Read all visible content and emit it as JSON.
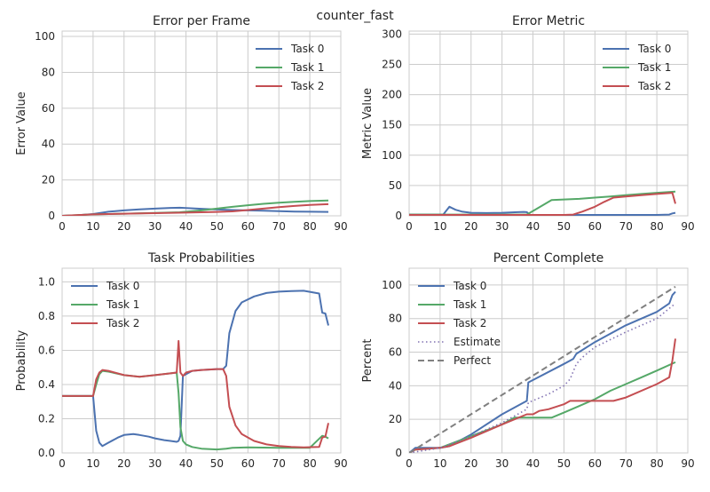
{
  "suptitle": "counter_fast",
  "colors": {
    "task0": "#4c72b0",
    "task1": "#55a868",
    "task2": "#c44e52",
    "estimate": "#8172b2",
    "perfect": "#808080"
  },
  "chart_data": [
    {
      "type": "line",
      "title": "Error per Frame",
      "xlabel": "",
      "ylabel": "Error Value",
      "xlim": [
        0,
        90
      ],
      "ylim": [
        0,
        103
      ],
      "xticks": [
        "0",
        "10",
        "20",
        "30",
        "40",
        "50",
        "60",
        "70",
        "80",
        "90"
      ],
      "yticks": [
        "0",
        "20",
        "40",
        "60",
        "80",
        "100"
      ],
      "legend": "top-right",
      "series": [
        {
          "name": "Task 0",
          "color": "#4c72b0",
          "style": "solid",
          "x": [
            0,
            5,
            10,
            15,
            20,
            25,
            30,
            35,
            38,
            40,
            45,
            50,
            55,
            60,
            65,
            70,
            75,
            80,
            86
          ],
          "y": [
            0,
            0.3,
            1,
            2.3,
            3,
            3.6,
            4,
            4.4,
            4.5,
            4.3,
            3.9,
            3.5,
            3.2,
            3,
            2.8,
            2.6,
            2.4,
            2.3,
            2.2
          ]
        },
        {
          "name": "Task 1",
          "color": "#55a868",
          "style": "solid",
          "x": [
            0,
            10,
            20,
            30,
            38,
            45,
            50,
            55,
            60,
            65,
            70,
            75,
            80,
            86
          ],
          "y": [
            0,
            0.8,
            1.2,
            1.6,
            2,
            3,
            4,
            5,
            5.9,
            6.7,
            7.3,
            7.8,
            8.2,
            8.5
          ]
        },
        {
          "name": "Task 2",
          "color": "#c44e52",
          "style": "solid",
          "x": [
            0,
            10,
            20,
            30,
            40,
            50,
            55,
            60,
            65,
            70,
            75,
            80,
            86
          ],
          "y": [
            0,
            0.8,
            1.2,
            1.5,
            1.8,
            2.2,
            2.5,
            3.2,
            4,
            4.8,
            5.5,
            6.1,
            6.5
          ]
        }
      ]
    },
    {
      "type": "line",
      "title": "Error Metric",
      "xlabel": "",
      "ylabel": "Metric Value",
      "xlim": [
        0,
        90
      ],
      "ylim": [
        0,
        305
      ],
      "xticks": [
        "0",
        "10",
        "20",
        "30",
        "40",
        "50",
        "60",
        "70",
        "80",
        "90"
      ],
      "yticks": [
        "0",
        "50",
        "100",
        "150",
        "200",
        "250",
        "300"
      ],
      "legend": "top-right",
      "series": [
        {
          "name": "Task 0",
          "color": "#4c72b0",
          "style": "solid",
          "x": [
            0,
            10,
            11,
            13,
            15,
            17,
            20,
            25,
            30,
            35,
            37,
            38,
            39,
            45,
            50,
            60,
            70,
            80,
            84,
            85,
            86
          ],
          "y": [
            2,
            2,
            2,
            15,
            10,
            7,
            5,
            4.5,
            5,
            6,
            6.5,
            6,
            1.5,
            1.5,
            1.5,
            1.5,
            1.5,
            1.5,
            2,
            4,
            5
          ]
        },
        {
          "name": "Task 1",
          "color": "#55a868",
          "style": "solid",
          "x": [
            0,
            10,
            20,
            30,
            38,
            42,
            46,
            50,
            55,
            60,
            65,
            70,
            75,
            80,
            86
          ],
          "y": [
            2,
            2,
            2,
            2,
            2,
            14,
            26,
            27,
            28,
            30,
            32,
            34,
            36,
            38,
            40
          ]
        },
        {
          "name": "Task 2",
          "color": "#c44e52",
          "style": "solid",
          "x": [
            0,
            10,
            20,
            30,
            40,
            50,
            53,
            56,
            60,
            63,
            66,
            70,
            75,
            80,
            85,
            86
          ],
          "y": [
            1.5,
            1.5,
            1.5,
            1.5,
            1.5,
            1.5,
            2,
            7,
            15,
            23,
            30,
            32,
            34,
            36,
            38,
            20
          ]
        }
      ]
    },
    {
      "type": "line",
      "title": "Task Probabilities",
      "xlabel": "",
      "ylabel": "Probability",
      "xlim": [
        0,
        90
      ],
      "ylim": [
        0,
        1.08
      ],
      "xticks": [
        "0",
        "10",
        "20",
        "30",
        "40",
        "50",
        "60",
        "70",
        "80",
        "90"
      ],
      "yticks": [
        "0.0",
        "0.2",
        "0.4",
        "0.6",
        "0.8",
        "1.0"
      ],
      "legend": "top-left",
      "series": [
        {
          "name": "Task 0",
          "color": "#4c72b0",
          "style": "solid",
          "x": [
            0,
            10,
            11,
            12,
            13,
            15,
            18,
            20,
            23,
            25,
            28,
            30,
            33,
            35,
            37,
            37.6,
            38.2,
            39,
            42,
            45,
            50,
            52,
            53,
            54,
            56,
            58,
            62,
            66,
            70,
            74,
            78,
            83,
            84,
            85,
            86
          ],
          "y": [
            0.333,
            0.333,
            0.13,
            0.06,
            0.04,
            0.06,
            0.09,
            0.105,
            0.11,
            0.105,
            0.095,
            0.085,
            0.075,
            0.07,
            0.065,
            0.07,
            0.1,
            0.45,
            0.48,
            0.485,
            0.49,
            0.49,
            0.51,
            0.7,
            0.83,
            0.88,
            0.915,
            0.935,
            0.943,
            0.946,
            0.948,
            0.932,
            0.82,
            0.815,
            0.745
          ]
        },
        {
          "name": "Task 1",
          "color": "#55a868",
          "style": "solid",
          "x": [
            0,
            10,
            11,
            12,
            13,
            15,
            20,
            25,
            30,
            35,
            37,
            37.6,
            38.2,
            39,
            40,
            42,
            45,
            50,
            53,
            55,
            60,
            70,
            80,
            84,
            85,
            86
          ],
          "y": [
            0.333,
            0.333,
            0.4,
            0.46,
            0.48,
            0.475,
            0.455,
            0.445,
            0.455,
            0.465,
            0.47,
            0.35,
            0.15,
            0.07,
            0.05,
            0.035,
            0.025,
            0.02,
            0.025,
            0.03,
            0.032,
            0.03,
            0.03,
            0.1,
            0.095,
            0.085
          ]
        },
        {
          "name": "Task 2",
          "color": "#c44e52",
          "style": "solid",
          "x": [
            0,
            10,
            11,
            12,
            13,
            15,
            20,
            25,
            30,
            35,
            37,
            37.6,
            38.2,
            39,
            40,
            42,
            45,
            50,
            52,
            53,
            54,
            56,
            58,
            62,
            66,
            70,
            74,
            78,
            83,
            84,
            85,
            86
          ],
          "y": [
            0.333,
            0.333,
            0.43,
            0.47,
            0.485,
            0.48,
            0.455,
            0.445,
            0.455,
            0.465,
            0.47,
            0.655,
            0.47,
            0.45,
            0.47,
            0.48,
            0.485,
            0.49,
            0.49,
            0.45,
            0.27,
            0.16,
            0.11,
            0.07,
            0.05,
            0.04,
            0.035,
            0.032,
            0.035,
            0.09,
            0.095,
            0.175
          ]
        }
      ]
    },
    {
      "type": "line",
      "title": "Percent Complete",
      "xlabel": "",
      "ylabel": "Percent",
      "xlim": [
        0,
        90
      ],
      "ylim": [
        0,
        110
      ],
      "xticks": [
        "0",
        "10",
        "20",
        "30",
        "40",
        "50",
        "60",
        "70",
        "80",
        "90"
      ],
      "yticks": [
        "0",
        "20",
        "40",
        "60",
        "80",
        "100"
      ],
      "legend": "top-left",
      "series": [
        {
          "name": "Task 0",
          "color": "#4c72b0",
          "style": "solid",
          "x": [
            0,
            2,
            10,
            13,
            20,
            30,
            37,
            38,
            38.5,
            50,
            53,
            54,
            60,
            70,
            80,
            84,
            85,
            86
          ],
          "y": [
            0,
            3,
            3,
            4,
            11,
            23,
            30,
            31,
            42,
            53,
            56,
            59,
            66,
            76,
            84,
            89,
            94,
            96
          ]
        },
        {
          "name": "Task 1",
          "color": "#55a868",
          "style": "solid",
          "x": [
            0,
            2,
            10,
            20,
            30,
            34,
            38,
            42,
            46,
            50,
            55,
            60,
            65,
            70,
            75,
            80,
            86
          ],
          "y": [
            0,
            2,
            3,
            10,
            17,
            21,
            21,
            21,
            21,
            24,
            28,
            32,
            37,
            41,
            45,
            49,
            54
          ]
        },
        {
          "name": "Task 2",
          "color": "#c44e52",
          "style": "solid",
          "x": [
            0,
            2,
            10,
            13,
            20,
            30,
            38,
            40,
            42,
            45,
            50,
            52,
            53,
            60,
            66,
            70,
            80,
            84,
            85,
            86
          ],
          "y": [
            0,
            2,
            3,
            4,
            9,
            17,
            23,
            23,
            25,
            26,
            29,
            31,
            31,
            31,
            31,
            33,
            41,
            45,
            55,
            68
          ]
        },
        {
          "name": "Estimate",
          "color": "#8172b2",
          "style": "dotted",
          "x": [
            0,
            5,
            10,
            20,
            30,
            37,
            38,
            38.5,
            45,
            50,
            52,
            54,
            56,
            60,
            70,
            80,
            86
          ],
          "y": [
            0,
            1.5,
            3,
            10,
            18,
            25,
            26,
            30,
            35,
            40,
            44,
            53,
            57,
            63,
            72,
            80,
            89
          ]
        },
        {
          "name": "Perfect",
          "color": "#808080",
          "style": "dashed",
          "x": [
            0,
            86
          ],
          "y": [
            0,
            99
          ]
        }
      ]
    }
  ]
}
